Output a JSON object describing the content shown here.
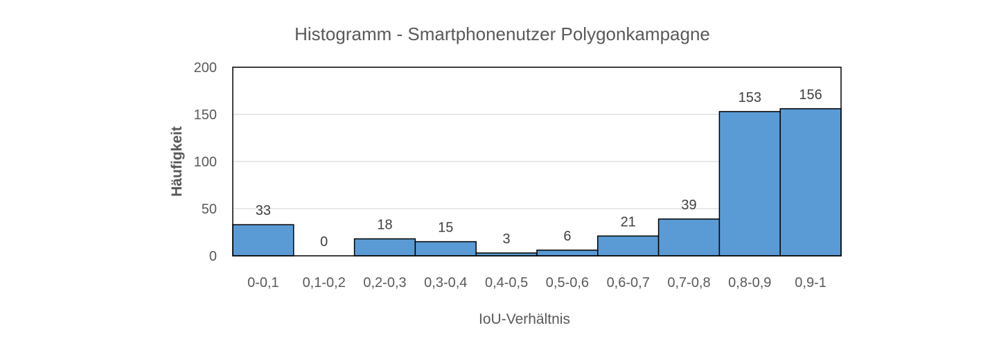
{
  "chart_data": {
    "type": "bar",
    "title": "Histogramm - Smartphonenutzer Polygonkampagne",
    "xlabel": "IoU-Verhältnis",
    "ylabel": "Häufigkeit",
    "categories": [
      "0-0,1",
      "0,1-0,2",
      "0,2-0,3",
      "0,3-0,4",
      "0,4-0,5",
      "0,5-0,6",
      "0,6-0,7",
      "0,7-0,8",
      "0,8-0,9",
      "0,9-1"
    ],
    "values": [
      33,
      0,
      18,
      15,
      3,
      6,
      21,
      39,
      153,
      156
    ],
    "data_labels": [
      "33",
      "0",
      "18",
      "15",
      "3",
      "6",
      "21",
      "39",
      "153",
      "156"
    ],
    "ylim": [
      0,
      200
    ],
    "yticks": [
      0,
      50,
      100,
      150,
      200
    ],
    "ytick_labels": [
      "0",
      "50",
      "100",
      "150",
      "200"
    ],
    "grid": true,
    "legend": "none",
    "colors": {
      "bar": "#5b9bd5",
      "bar_edge": "#000000",
      "grid": "#d9d9d9",
      "frame": "#000000"
    }
  }
}
